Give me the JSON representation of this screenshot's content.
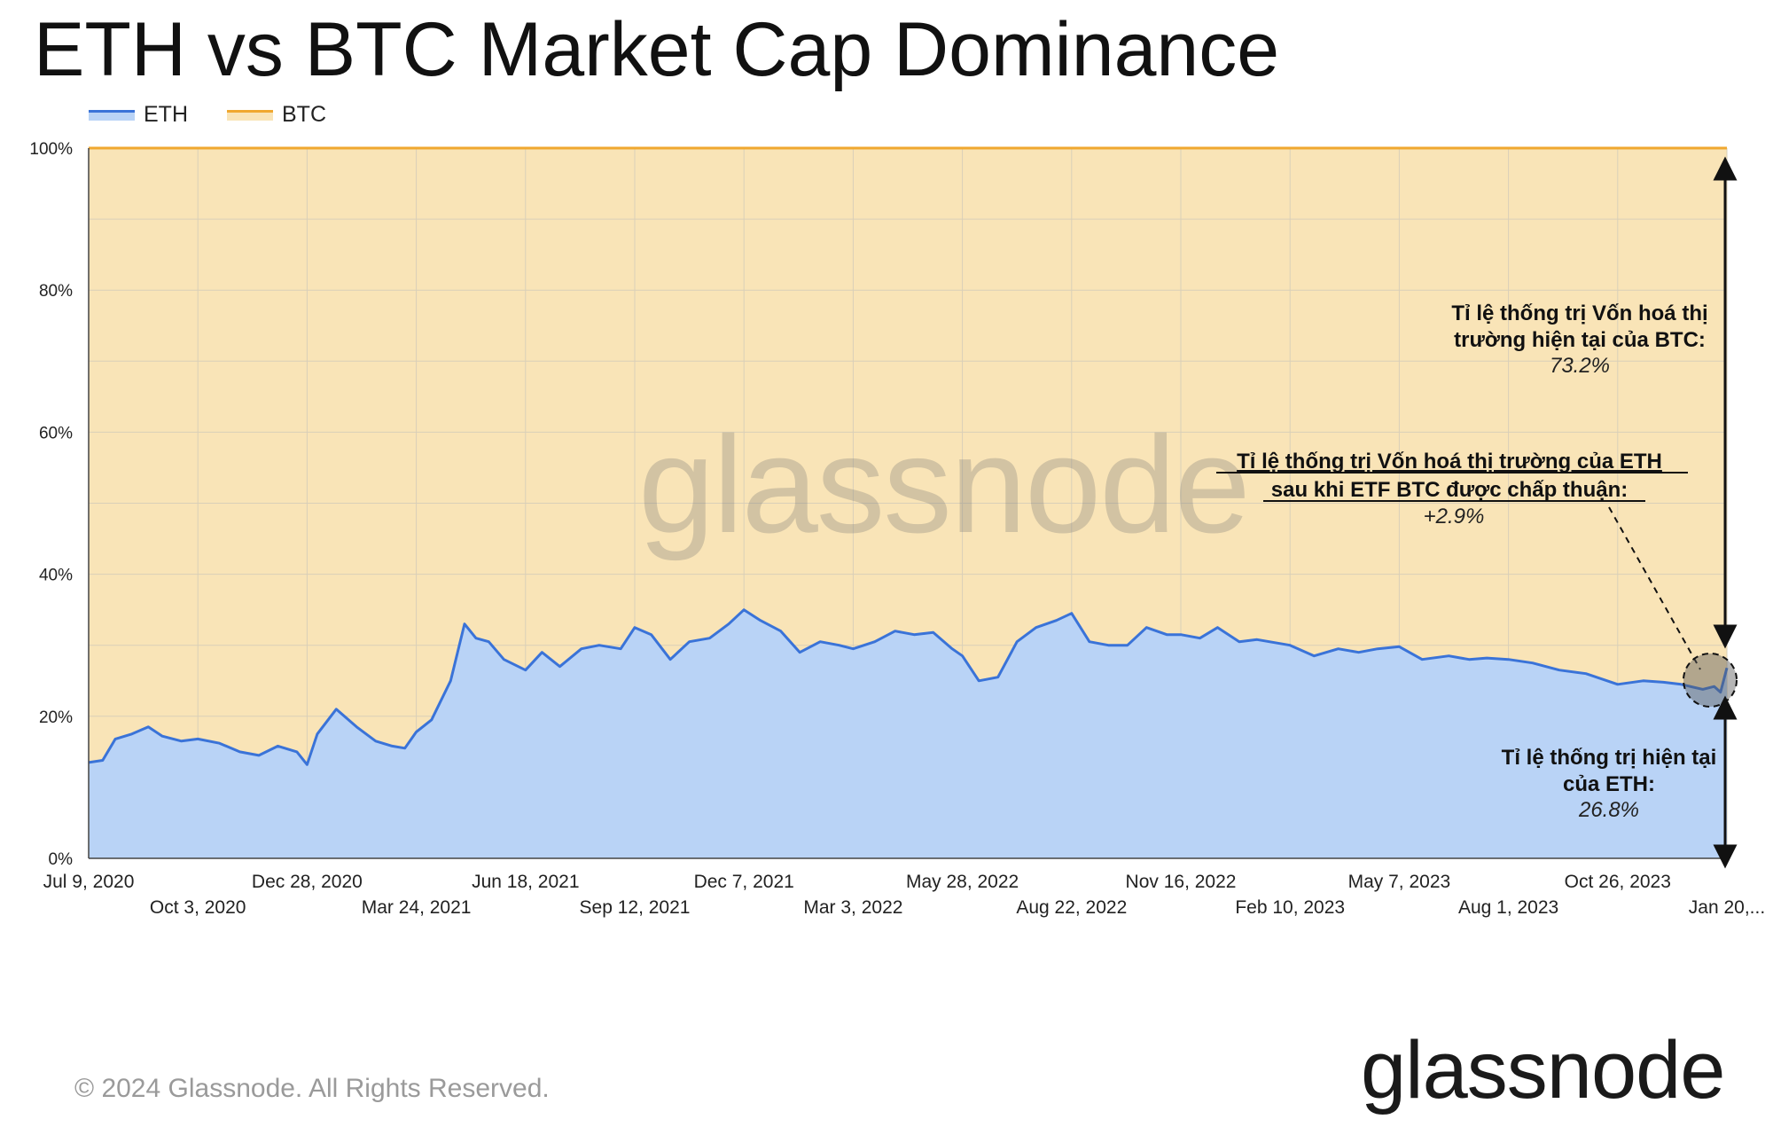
{
  "title": "ETH vs BTC Market Cap Dominance",
  "legend": [
    {
      "label": "ETH",
      "color": "#3a73d8"
    },
    {
      "label": "BTC",
      "color": "#f5c77a"
    }
  ],
  "colors": {
    "eth_line": "#3a73d8",
    "eth_fill": "#b9d3f6",
    "btc_fill": "#f9e4b7",
    "btc_line": "#f0a830",
    "grid": "#d9cfb8"
  },
  "watermark": "glassnode",
  "copyright": "© 2024 Glassnode. All Rights Reserved.",
  "logo": "glassnode",
  "annotations": {
    "btc_current": {
      "line1": "Tỉ lệ thống trị Vốn hoá thị",
      "line2": "trường hiện tại của BTC:",
      "value": "73.2%"
    },
    "eth_after_etf": {
      "line1": "Tỉ lệ thống trị Vốn hoá thị trường của ETH",
      "line2": "sau khi ETF BTC được chấp thuận:",
      "value": "+2.9%"
    },
    "eth_current": {
      "line1": "Tỉ lệ thống trị hiện tại",
      "line2": "của  ETH:",
      "value": "26.8%"
    }
  },
  "chart_data": {
    "type": "area",
    "stacked": true,
    "ylim": [
      0,
      100
    ],
    "yticks": [
      "0%",
      "20%",
      "40%",
      "60%",
      "80%",
      "100%"
    ],
    "xlim": [
      "2020-07-09",
      "2024-01-20"
    ],
    "xticks": [
      "Jul 9, 2020",
      "Oct 3, 2020",
      "Dec 28, 2020",
      "Mar 24, 2021",
      "Jun 18, 2021",
      "Sep 12, 2021",
      "Dec 7, 2021",
      "Mar 3, 2022",
      "May 28, 2022",
      "Aug 22, 2022",
      "Nov 16, 2022",
      "Feb 10, 2023",
      "May 7, 2023",
      "Aug 1, 2023",
      "Oct 26, 2023",
      "Jan 20,..."
    ],
    "grid": true,
    "legend_position": "top-left",
    "series": [
      {
        "name": "ETH",
        "x": [
          "2020-07-09",
          "2020-07-20",
          "2020-07-30",
          "2020-08-12",
          "2020-08-25",
          "2020-09-05",
          "2020-09-20",
          "2020-10-03",
          "2020-10-20",
          "2020-11-05",
          "2020-11-20",
          "2020-12-05",
          "2020-12-20",
          "2020-12-28",
          "2021-01-05",
          "2021-01-20",
          "2021-02-05",
          "2021-02-20",
          "2021-03-05",
          "2021-03-15",
          "2021-03-24",
          "2021-04-05",
          "2021-04-20",
          "2021-05-01",
          "2021-05-10",
          "2021-05-20",
          "2021-06-01",
          "2021-06-18",
          "2021-07-01",
          "2021-07-15",
          "2021-08-01",
          "2021-08-15",
          "2021-09-01",
          "2021-09-12",
          "2021-09-25",
          "2021-10-10",
          "2021-10-25",
          "2021-11-10",
          "2021-11-25",
          "2021-12-07",
          "2021-12-20",
          "2022-01-05",
          "2022-01-20",
          "2022-02-05",
          "2022-02-20",
          "2022-03-03",
          "2022-03-20",
          "2022-04-05",
          "2022-04-20",
          "2022-05-05",
          "2022-05-20",
          "2022-05-28",
          "2022-06-10",
          "2022-06-25",
          "2022-07-10",
          "2022-07-25",
          "2022-08-10",
          "2022-08-22",
          "2022-09-05",
          "2022-09-20",
          "2022-10-05",
          "2022-10-20",
          "2022-11-05",
          "2022-11-16",
          "2022-12-01",
          "2022-12-15",
          "2023-01-01",
          "2023-01-15",
          "2023-02-10",
          "2023-03-01",
          "2023-03-20",
          "2023-04-05",
          "2023-04-20",
          "2023-05-07",
          "2023-05-25",
          "2023-06-15",
          "2023-07-01",
          "2023-07-15",
          "2023-08-01",
          "2023-08-20",
          "2023-09-10",
          "2023-10-01",
          "2023-10-26",
          "2023-11-15",
          "2023-12-01",
          "2023-12-15",
          "2024-01-01",
          "2024-01-10",
          "2024-01-15",
          "2024-01-20"
        ],
        "values": [
          13.5,
          13.8,
          16.8,
          17.5,
          18.5,
          17.2,
          16.5,
          16.8,
          16.2,
          15.0,
          14.5,
          15.8,
          15.0,
          13.2,
          17.5,
          21.0,
          18.5,
          16.5,
          15.8,
          15.5,
          17.8,
          19.5,
          25.0,
          33.0,
          31.0,
          30.5,
          28.0,
          26.5,
          29.0,
          27.0,
          29.5,
          30.0,
          29.5,
          32.5,
          31.5,
          28.0,
          30.5,
          31.0,
          33.0,
          35.0,
          33.5,
          32.0,
          29.0,
          30.5,
          30.0,
          29.5,
          30.5,
          32.0,
          31.5,
          31.8,
          29.5,
          28.5,
          25.0,
          25.5,
          30.5,
          32.5,
          33.5,
          34.5,
          30.5,
          30.0,
          30.0,
          32.5,
          31.5,
          31.5,
          31.0,
          32.5,
          30.5,
          30.8,
          30.0,
          28.5,
          29.5,
          29.0,
          29.5,
          29.8,
          28.0,
          28.5,
          28.0,
          28.2,
          28.0,
          27.5,
          26.5,
          26.0,
          24.5,
          25.0,
          24.8,
          24.5,
          23.8,
          24.2,
          23.4,
          26.8
        ]
      },
      {
        "name": "BTC",
        "note": "fills remainder to 100%",
        "current": 73.2
      }
    ]
  }
}
